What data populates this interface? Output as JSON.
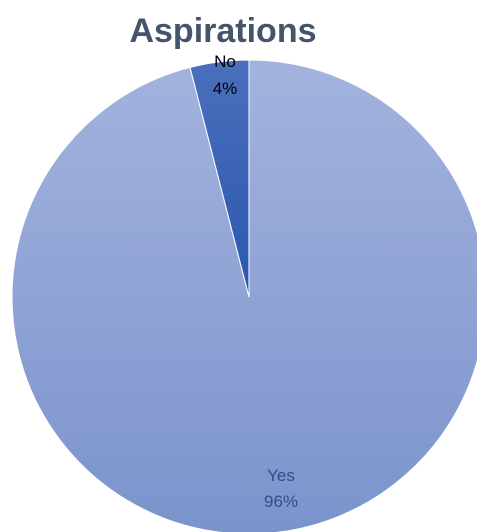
{
  "chart_data": {
    "type": "pie",
    "title": "Aspirations",
    "slices": [
      {
        "label": "Yes",
        "value": 96,
        "value_text": "96%",
        "color": "#8A9FD3",
        "label_color": "#2F4E8F"
      },
      {
        "label": "No",
        "value": 4,
        "value_text": "4%",
        "color": "#3A62B2",
        "label_color": "#000000"
      }
    ],
    "start_angle_deg": 0,
    "direction": "counterclockwise-for-first-slice",
    "legend": "none",
    "data_labels": "category and percentage"
  }
}
